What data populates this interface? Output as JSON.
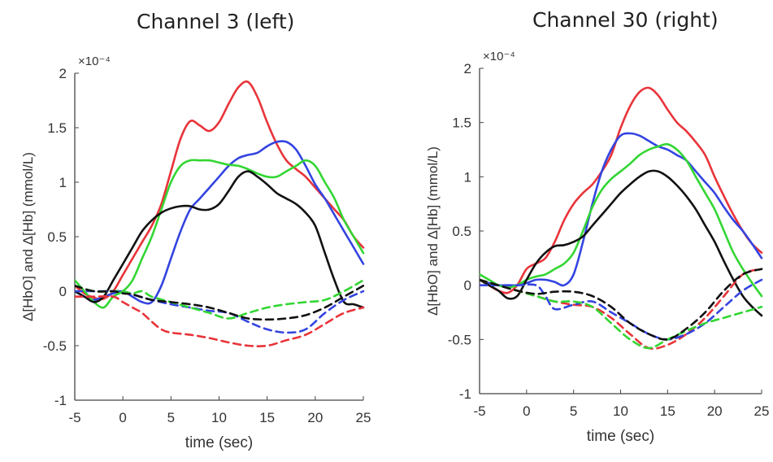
{
  "chart_data": [
    {
      "type": "line",
      "title": "Channel 3 (left)",
      "xlabel": "time (sec)",
      "ylabel": "Δ[HbO] and Δ[Hb] (mmol/L)",
      "y_multiplier": "×10⁻⁴",
      "xlim": [
        -5,
        25
      ],
      "ylim": [
        -1,
        2
      ],
      "xticks": [
        "-5",
        "0",
        "5",
        "10",
        "15",
        "20",
        "25"
      ],
      "yticks": [
        "2",
        "1.5",
        "1",
        "0.5",
        "0",
        "-0.5",
        "-1"
      ],
      "grid": false,
      "series": [
        {
          "color": "#e8343a",
          "dash": false,
          "x": [
            -5,
            -4,
            -3,
            -2,
            -1,
            0,
            1,
            2,
            3,
            4,
            5,
            6,
            7,
            8,
            9,
            10,
            11,
            12,
            13,
            14,
            15,
            16,
            17,
            18,
            19,
            20,
            21,
            22,
            23,
            24,
            25
          ],
          "y": [
            0.05,
            -0.02,
            -0.06,
            -0.07,
            0.0,
            0.15,
            0.3,
            0.45,
            0.6,
            0.8,
            1.1,
            1.4,
            1.56,
            1.52,
            1.47,
            1.55,
            1.72,
            1.87,
            1.92,
            1.78,
            1.55,
            1.35,
            1.2,
            1.12,
            1.05,
            0.95,
            0.85,
            0.75,
            0.65,
            0.5,
            0.4
          ]
        },
        {
          "color": "#3344e0",
          "dash": false,
          "x": [
            -5,
            -4,
            -3,
            -2,
            -1,
            0,
            1,
            2,
            3,
            4,
            5,
            6,
            7,
            8,
            9,
            10,
            11,
            12,
            13,
            14,
            15,
            16,
            17,
            18,
            19,
            20,
            21,
            22,
            23,
            24,
            25
          ],
          "y": [
            0.0,
            -0.05,
            -0.08,
            -0.05,
            -0.02,
            0.0,
            -0.05,
            -0.1,
            -0.1,
            0.05,
            0.3,
            0.55,
            0.75,
            0.85,
            0.95,
            1.05,
            1.15,
            1.22,
            1.25,
            1.27,
            1.33,
            1.37,
            1.37,
            1.3,
            1.15,
            0.98,
            0.85,
            0.7,
            0.55,
            0.4,
            0.25
          ]
        },
        {
          "color": "#33d633",
          "dash": false,
          "x": [
            -5,
            -4,
            -3,
            -2,
            -1,
            0,
            1,
            2,
            3,
            4,
            5,
            6,
            7,
            8,
            9,
            10,
            11,
            12,
            13,
            14,
            15,
            16,
            17,
            18,
            19,
            20,
            21,
            22,
            23,
            24,
            25
          ],
          "y": [
            0.1,
            0.0,
            -0.1,
            -0.15,
            -0.05,
            0.0,
            0.1,
            0.3,
            0.5,
            0.75,
            1.0,
            1.15,
            1.2,
            1.2,
            1.2,
            1.18,
            1.16,
            1.15,
            1.12,
            1.08,
            1.05,
            1.05,
            1.1,
            1.15,
            1.2,
            1.15,
            1.0,
            0.85,
            0.65,
            0.5,
            0.35
          ]
        },
        {
          "color": "#111111",
          "dash": false,
          "x": [
            -5,
            -4,
            -3,
            -2,
            -1,
            0,
            1,
            2,
            3,
            4,
            5,
            6,
            7,
            8,
            9,
            10,
            11,
            12,
            13,
            14,
            15,
            16,
            17,
            18,
            19,
            20,
            21,
            22,
            23,
            24,
            25
          ],
          "y": [
            0.0,
            -0.05,
            -0.1,
            -0.05,
            0.1,
            0.25,
            0.4,
            0.55,
            0.65,
            0.72,
            0.76,
            0.78,
            0.78,
            0.75,
            0.75,
            0.8,
            0.92,
            1.05,
            1.1,
            1.05,
            0.98,
            0.9,
            0.85,
            0.8,
            0.72,
            0.6,
            0.35,
            0.1,
            -0.1,
            -0.12,
            -0.15
          ]
        },
        {
          "color": "#e8343a",
          "dash": true,
          "x": [
            -5,
            -3,
            -1,
            0,
            1,
            2,
            3,
            4,
            5,
            7,
            9,
            11,
            13,
            15,
            17,
            19,
            21,
            23,
            25
          ],
          "y": [
            -0.05,
            -0.05,
            -0.05,
            -0.1,
            -0.15,
            -0.2,
            -0.28,
            -0.35,
            -0.38,
            -0.4,
            -0.43,
            -0.47,
            -0.5,
            -0.5,
            -0.45,
            -0.4,
            -0.3,
            -0.2,
            -0.15
          ]
        },
        {
          "color": "#3344e0",
          "dash": true,
          "x": [
            -5,
            -3,
            -1,
            0,
            1,
            3,
            5,
            7,
            9,
            11,
            13,
            15,
            17,
            19,
            21,
            23,
            25
          ],
          "y": [
            0.0,
            0.0,
            0.0,
            0.0,
            -0.03,
            -0.08,
            -0.12,
            -0.15,
            -0.18,
            -0.2,
            -0.28,
            -0.35,
            -0.38,
            -0.35,
            -0.2,
            -0.08,
            0.0
          ]
        },
        {
          "color": "#33d633",
          "dash": true,
          "x": [
            -5,
            -3,
            -1,
            0,
            1,
            2,
            3,
            5,
            7,
            9,
            11,
            13,
            15,
            17,
            19,
            21,
            23,
            25
          ],
          "y": [
            0.05,
            0.0,
            0.0,
            0.0,
            -0.02,
            0.0,
            -0.05,
            -0.1,
            -0.15,
            -0.2,
            -0.25,
            -0.2,
            -0.15,
            -0.12,
            -0.1,
            -0.08,
            0.0,
            0.1
          ]
        },
        {
          "color": "#111111",
          "dash": true,
          "x": [
            -5,
            -3,
            -1,
            0,
            1,
            3,
            5,
            7,
            9,
            11,
            13,
            15,
            17,
            19,
            21,
            23,
            25
          ],
          "y": [
            0.05,
            0.0,
            0.0,
            -0.02,
            -0.03,
            -0.08,
            -0.1,
            -0.12,
            -0.15,
            -0.2,
            -0.25,
            -0.26,
            -0.25,
            -0.22,
            -0.15,
            -0.05,
            0.05
          ]
        }
      ]
    },
    {
      "type": "line",
      "title": "Channel 30 (right)",
      "xlabel": "time (sec)",
      "ylabel": "Δ[HbO] and Δ[Hb] (mmol/L)",
      "y_multiplier": "×10⁻⁴",
      "xlim": [
        -5,
        25
      ],
      "ylim": [
        -1,
        2
      ],
      "xticks": [
        "-5",
        "0",
        "5",
        "10",
        "15",
        "20",
        "25"
      ],
      "yticks": [
        "2",
        "1.5",
        "1",
        "0.5",
        "0",
        "-0.5",
        "-1"
      ],
      "grid": false,
      "series": [
        {
          "color": "#e8343a",
          "dash": false,
          "x": [
            -5,
            -4,
            -3,
            -2,
            -1,
            0,
            1,
            2,
            3,
            4,
            5,
            6,
            7,
            8,
            9,
            10,
            11,
            12,
            13,
            14,
            15,
            16,
            17,
            18,
            19,
            20,
            21,
            22,
            23,
            24,
            25
          ],
          "y": [
            0.05,
            0.0,
            -0.05,
            -0.07,
            0.0,
            0.15,
            0.2,
            0.25,
            0.4,
            0.6,
            0.75,
            0.85,
            0.93,
            1.05,
            1.2,
            1.45,
            1.65,
            1.78,
            1.82,
            1.75,
            1.62,
            1.5,
            1.42,
            1.32,
            1.2,
            1.0,
            0.82,
            0.65,
            0.5,
            0.38,
            0.3
          ]
        },
        {
          "color": "#3344e0",
          "dash": false,
          "x": [
            -5,
            -4,
            -3,
            -2,
            -1,
            0,
            1,
            2,
            3,
            4,
            5,
            6,
            7,
            8,
            9,
            10,
            11,
            12,
            13,
            14,
            15,
            16,
            17,
            18,
            19,
            20,
            21,
            22,
            23,
            24,
            25
          ],
          "y": [
            0.05,
            0.02,
            0.0,
            0.0,
            0.0,
            0.02,
            0.05,
            0.05,
            0.03,
            0.0,
            0.1,
            0.4,
            0.75,
            1.05,
            1.25,
            1.38,
            1.4,
            1.38,
            1.33,
            1.28,
            1.25,
            1.2,
            1.15,
            1.05,
            0.95,
            0.85,
            0.72,
            0.6,
            0.5,
            0.38,
            0.25
          ]
        },
        {
          "color": "#33d633",
          "dash": false,
          "x": [
            -5,
            -4,
            -3,
            -2,
            -1,
            0,
            1,
            2,
            3,
            4,
            5,
            6,
            7,
            8,
            9,
            10,
            11,
            12,
            13,
            14,
            15,
            16,
            17,
            18,
            19,
            20,
            21,
            22,
            23,
            24,
            25
          ],
          "y": [
            0.1,
            0.05,
            0.0,
            -0.02,
            0.0,
            0.05,
            0.08,
            0.1,
            0.15,
            0.2,
            0.3,
            0.5,
            0.72,
            0.88,
            0.98,
            1.05,
            1.12,
            1.2,
            1.25,
            1.28,
            1.3,
            1.25,
            1.15,
            1.0,
            0.85,
            0.7,
            0.5,
            0.3,
            0.15,
            0.02,
            -0.1
          ]
        },
        {
          "color": "#111111",
          "dash": false,
          "x": [
            -5,
            -4,
            -3,
            -2,
            -1,
            0,
            1,
            2,
            3,
            4,
            5,
            6,
            7,
            8,
            9,
            10,
            11,
            12,
            13,
            14,
            15,
            16,
            17,
            18,
            19,
            20,
            21,
            22,
            23,
            24,
            25
          ],
          "y": [
            0.05,
            0.0,
            -0.05,
            -0.12,
            -0.1,
            0.05,
            0.2,
            0.3,
            0.36,
            0.37,
            0.4,
            0.45,
            0.55,
            0.65,
            0.75,
            0.85,
            0.93,
            1.0,
            1.05,
            1.05,
            1.0,
            0.92,
            0.82,
            0.7,
            0.55,
            0.4,
            0.22,
            0.05,
            -0.1,
            -0.2,
            -0.28
          ]
        },
        {
          "color": "#e8343a",
          "dash": true,
          "x": [
            -5,
            -3,
            -1,
            1,
            3,
            5,
            7,
            9,
            11,
            13,
            15,
            17,
            19,
            21,
            23,
            25
          ],
          "y": [
            0.05,
            0.0,
            -0.05,
            -0.1,
            -0.15,
            -0.18,
            -0.2,
            -0.3,
            -0.45,
            -0.58,
            -0.55,
            -0.45,
            -0.3,
            -0.1,
            0.1,
            0.15
          ]
        },
        {
          "color": "#3344e0",
          "dash": true,
          "x": [
            -5,
            -3,
            -1,
            1,
            2,
            3,
            5,
            7,
            9,
            11,
            13,
            15,
            17,
            19,
            21,
            23,
            25
          ],
          "y": [
            0.0,
            0.0,
            0.0,
            0.0,
            -0.1,
            -0.22,
            -0.18,
            -0.15,
            -0.25,
            -0.35,
            -0.45,
            -0.5,
            -0.45,
            -0.35,
            -0.2,
            -0.05,
            0.05
          ]
        },
        {
          "color": "#33d633",
          "dash": true,
          "x": [
            -5,
            -3,
            -1,
            1,
            3,
            5,
            7,
            9,
            11,
            13,
            15,
            17,
            19,
            21,
            23,
            25
          ],
          "y": [
            0.05,
            0.0,
            -0.05,
            -0.1,
            -0.15,
            -0.15,
            -0.2,
            -0.35,
            -0.5,
            -0.58,
            -0.5,
            -0.42,
            -0.35,
            -0.3,
            -0.25,
            -0.2
          ]
        },
        {
          "color": "#111111",
          "dash": true,
          "x": [
            -5,
            -3,
            -1,
            1,
            3,
            5,
            7,
            9,
            11,
            13,
            15,
            17,
            19,
            21,
            23,
            25
          ],
          "y": [
            0.05,
            0.0,
            -0.05,
            -0.08,
            -0.06,
            -0.06,
            -0.1,
            -0.2,
            -0.35,
            -0.45,
            -0.5,
            -0.4,
            -0.25,
            -0.05,
            0.1,
            0.15
          ]
        }
      ]
    }
  ]
}
